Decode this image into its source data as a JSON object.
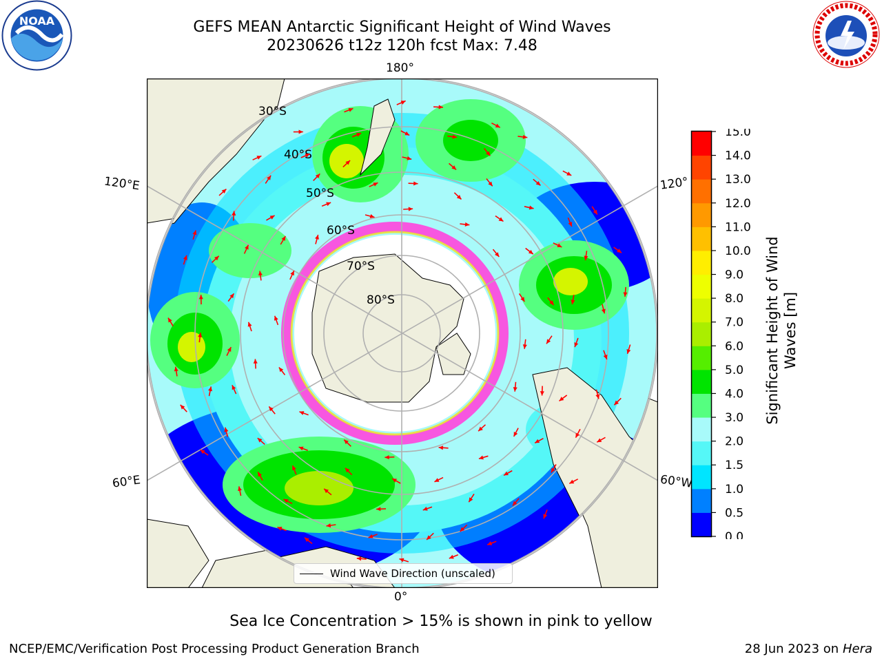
{
  "title_line1": "GEFS MEAN Antarctic Significant Height of Wind Waves",
  "title_line2": "20230626 t12z 120h fcst   Max: 7.48",
  "lon_labels": {
    "top": "180°",
    "bottom": "0°",
    "left_upper": "120°E",
    "left_lower": "60°E",
    "right_upper": "120°",
    "right_lower": "60°W"
  },
  "lat_labels": [
    "30°S",
    "40°S",
    "50°S",
    "60°S",
    "70°S",
    "80°S"
  ],
  "legend_label": "Wind Wave Direction (unscaled)",
  "colorbar": {
    "label": "Significant Height of Wind Waves [m]",
    "label_line1": "Significant Height of Wind",
    "label_line2": "Waves [m]",
    "ticks": [
      "0.0",
      "0.5",
      "1.0",
      "1.5",
      "2.0",
      "3.0",
      "4.0",
      "5.0",
      "6.0",
      "7.0",
      "8.0",
      "9.0",
      "10.0",
      "11.0",
      "12.0",
      "13.0",
      "14.0",
      "15.0"
    ],
    "colors": [
      "#0000ff",
      "#0080ff",
      "#00e5ff",
      "#55f7f7",
      "#a8fafa",
      "#55ff80",
      "#00e400",
      "#55ee00",
      "#aaee00",
      "#d4f500",
      "#eeff00",
      "#ffee00",
      "#ffc000",
      "#ff9900",
      "#ff7000",
      "#ff4400",
      "#ff0000"
    ]
  },
  "note": "Sea Ice Concentration > 15% is shown in pink to yellow",
  "footer_left": "NCEP/EMC/Verification Post Processing Product Generation Branch",
  "footer_right_date": "28 Jun 2023 on",
  "footer_right_host": "Hera",
  "logos": {
    "noaa_text": "NOAA",
    "nws_text": "NATIONAL WEATHER SERVICE"
  }
}
